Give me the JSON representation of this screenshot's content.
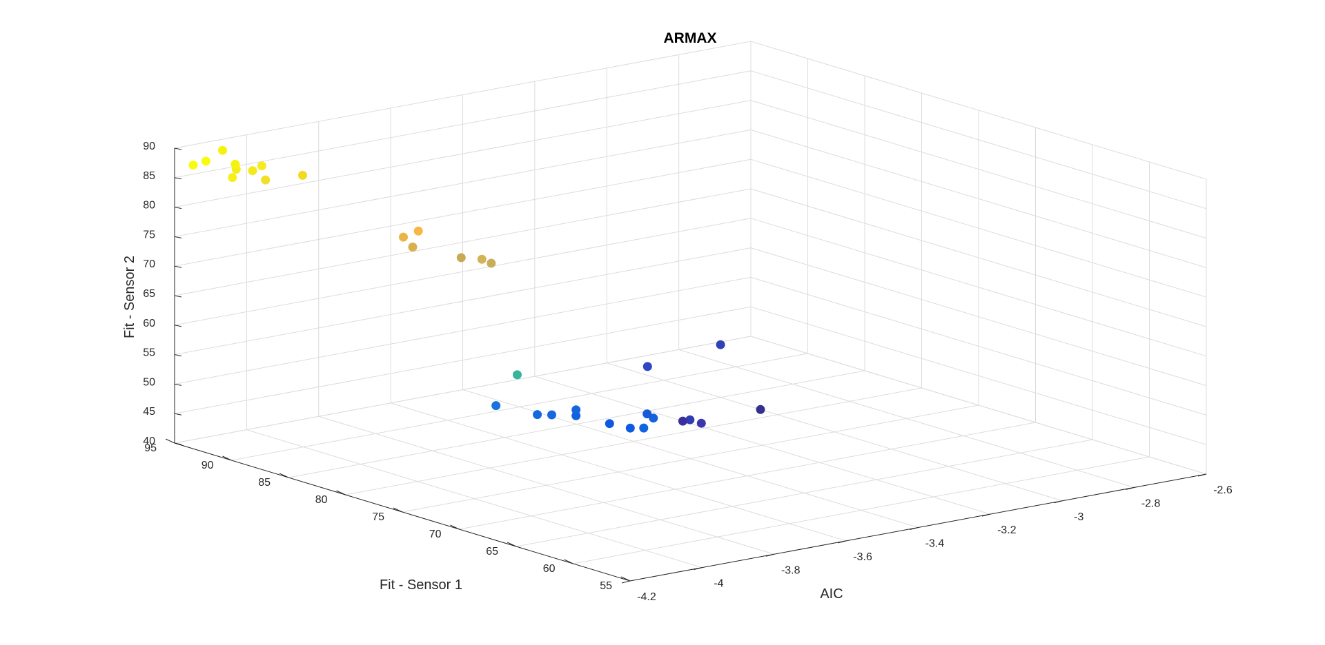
{
  "chart_data": {
    "type": "scatter",
    "title": "ARMAX",
    "xlabel": "AIC",
    "ylabel": "Fit - Sensor 1",
    "zlabel": "Fit - Sensor 2",
    "xlim": [
      -4.2,
      -2.6
    ],
    "ylim": [
      55,
      95
    ],
    "zlim": [
      40,
      90
    ],
    "x_ticks": [
      "-4.2",
      "-4",
      "-3.8",
      "-3.6",
      "-3.4",
      "-3.2",
      "-3",
      "-2.8",
      "-2.6"
    ],
    "y_ticks": [
      "95",
      "90",
      "85",
      "80",
      "75",
      "70",
      "65",
      "60",
      "55"
    ],
    "z_ticks": [
      "40",
      "45",
      "50",
      "55",
      "60",
      "65",
      "70",
      "75",
      "80",
      "85",
      "90"
    ],
    "grid": true,
    "colormap": "parula",
    "points": [
      {
        "x": -4.18,
        "y": 94.0,
        "z": 87.5,
        "color": "#f9fb0e"
      },
      {
        "x": -4.17,
        "y": 93.2,
        "z": 88.5,
        "color": "#f9fb0e"
      },
      {
        "x": -4.15,
        "y": 91.5,
        "z": 86.5,
        "color": "#f7ef1a"
      },
      {
        "x": -4.13,
        "y": 93.0,
        "z": 90.0,
        "color": "#f5f20f"
      },
      {
        "x": -4.13,
        "y": 91.8,
        "z": 87.5,
        "color": "#f2ee1b"
      },
      {
        "x": -4.12,
        "y": 92.2,
        "z": 88.0,
        "color": "#f5f20f"
      },
      {
        "x": -4.11,
        "y": 91.0,
        "z": 87.5,
        "color": "#f4e91d"
      },
      {
        "x": -4.1,
        "y": 90.5,
        "z": 88.5,
        "color": "#f6eb1c"
      },
      {
        "x": -4.09,
        "y": 90.5,
        "z": 86.0,
        "color": "#f3df24"
      },
      {
        "x": -4.05,
        "y": 88.5,
        "z": 87.5,
        "color": "#f3d921"
      },
      {
        "x": -3.95,
        "y": 81.5,
        "z": 81.0,
        "color": "#f7b742"
      },
      {
        "x": -3.96,
        "y": 82.5,
        "z": 79.5,
        "color": "#e8b646"
      },
      {
        "x": -3.95,
        "y": 82.0,
        "z": 78.0,
        "color": "#d8b04e"
      },
      {
        "x": -3.91,
        "y": 79.0,
        "z": 77.5,
        "color": "#c8aa52"
      },
      {
        "x": -3.9,
        "y": 77.5,
        "z": 78.0,
        "color": "#d4b356"
      },
      {
        "x": -3.89,
        "y": 77.0,
        "z": 77.5,
        "color": "#c9ae5a"
      },
      {
        "x": -3.96,
        "y": 72.5,
        "z": 62.0,
        "color": "#35b59a"
      },
      {
        "x": -3.45,
        "y": 90.5,
        "z": 40.5,
        "color": "#1a73dc"
      },
      {
        "x": -3.43,
        "y": 87.5,
        "z": 40.5,
        "color": "#1568de"
      },
      {
        "x": -3.39,
        "y": 87.5,
        "z": 40.0,
        "color": "#1668dc"
      },
      {
        "x": -3.37,
        "y": 86.0,
        "z": 40.5,
        "color": "#1260e0"
      },
      {
        "x": -3.34,
        "y": 84.0,
        "z": 40.0,
        "color": "#1158e0"
      },
      {
        "x": -3.33,
        "y": 82.5,
        "z": 40.0,
        "color": "#0f5ae2"
      },
      {
        "x": -3.34,
        "y": 81.0,
        "z": 41.0,
        "color": "#1064e0"
      },
      {
        "x": -3.37,
        "y": 86.0,
        "z": 41.5,
        "color": "#1566dd"
      },
      {
        "x": -3.25,
        "y": 83.0,
        "z": 40.5,
        "color": "#1462dc"
      },
      {
        "x": -3.22,
        "y": 84.5,
        "z": 40.0,
        "color": "#1b5ad6"
      },
      {
        "x": -3.18,
        "y": 82.0,
        "z": 40.0,
        "color": "#2f3db4"
      },
      {
        "x": -3.18,
        "y": 81.0,
        "z": 40.0,
        "color": "#3a36b0"
      },
      {
        "x": -3.2,
        "y": 82.0,
        "z": 40.0,
        "color": "#3b2e9e"
      },
      {
        "x": -3.0,
        "y": 81.5,
        "z": 40.0,
        "color": "#35308e"
      },
      {
        "x": -2.95,
        "y": 93.0,
        "z": 40.0,
        "color": "#2e47c2"
      },
      {
        "x": -2.7,
        "y": 94.5,
        "z": 40.0,
        "color": "#3040b5"
      }
    ]
  }
}
